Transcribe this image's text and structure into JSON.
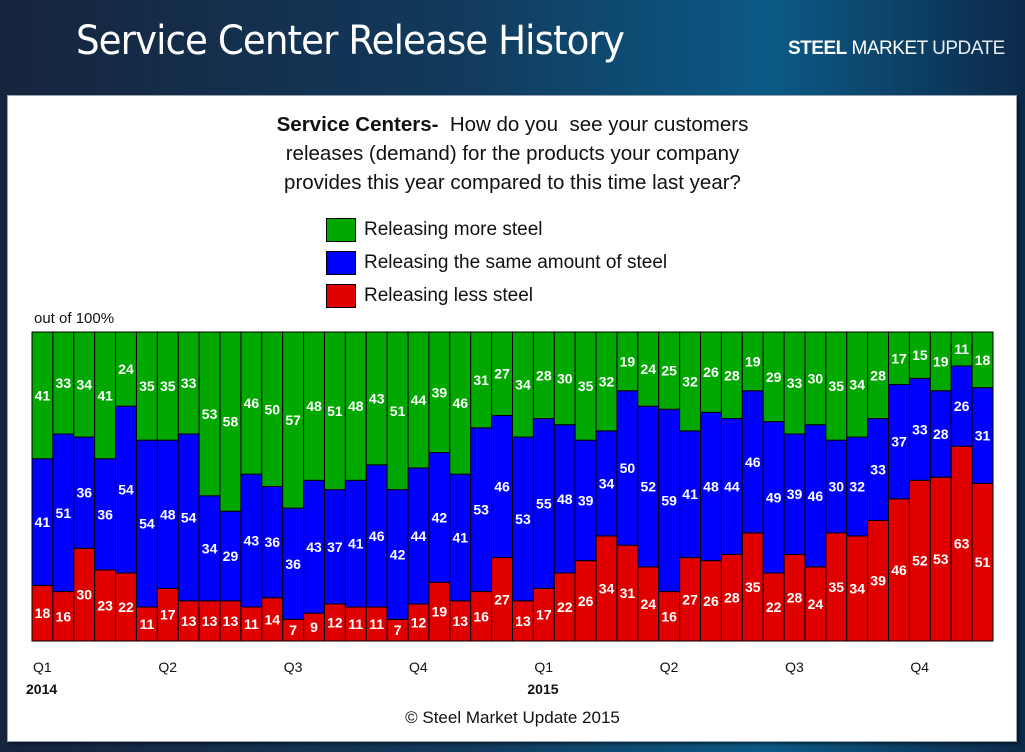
{
  "header": {
    "title": "Service Center Release History",
    "logo": {
      "bold": "STEEL",
      "mid": "MARKET",
      "light": "UPDATE"
    }
  },
  "question": {
    "lead": "Service Centers-",
    "text_line1": "  How do you  see your customers",
    "text_line2": "releases (demand) for the products your company",
    "text_line3": "provides this year compared to this time last year?"
  },
  "footer": {
    "copyright": "© Steel Market Update 2015"
  },
  "chart_data": {
    "type": "bar",
    "stacked": true,
    "title": "Service Centers- How do you see your customers releases (demand) for the products your company provides this year compared to this time last year?",
    "ylabel": "out of 100%",
    "ylim": [
      0,
      100
    ],
    "grid": false,
    "legend_position": "top-center",
    "colors": {
      "more": "#00a800",
      "same": "#0000ff",
      "less": "#e00000"
    },
    "x_ticks": [
      {
        "label": "Q1",
        "bar_index": 0
      },
      {
        "label": "Q2",
        "bar_index": 6
      },
      {
        "label": "Q3",
        "bar_index": 12
      },
      {
        "label": "Q4",
        "bar_index": 18
      },
      {
        "label": "Q1",
        "bar_index": 24
      },
      {
        "label": "Q2",
        "bar_index": 30
      },
      {
        "label": "Q3",
        "bar_index": 36
      },
      {
        "label": "Q4",
        "bar_index": 42
      }
    ],
    "year_labels": [
      {
        "label": "2014",
        "bar_index": 0
      },
      {
        "label": "2015",
        "bar_index": 24
      }
    ],
    "series": [
      {
        "name": "Releasing less steel",
        "key": "less",
        "values": [
          18,
          16,
          30,
          23,
          22,
          11,
          17,
          13,
          13,
          13,
          11,
          14,
          7,
          9,
          12,
          11,
          11,
          7,
          12,
          19,
          13,
          16,
          27,
          13,
          17,
          22,
          26,
          34,
          31,
          24,
          16,
          27,
          26,
          28,
          35,
          22,
          28,
          24,
          35,
          34,
          39,
          46,
          52,
          53,
          63,
          51
        ]
      },
      {
        "name": "Releasing the same amount of steel",
        "key": "same",
        "values": [
          41,
          51,
          36,
          36,
          54,
          54,
          48,
          54,
          34,
          29,
          43,
          36,
          36,
          43,
          37,
          41,
          46,
          42,
          44,
          42,
          41,
          53,
          46,
          53,
          55,
          48,
          39,
          34,
          50,
          52,
          59,
          41,
          48,
          44,
          46,
          49,
          39,
          46,
          30,
          32,
          33,
          37,
          33,
          28,
          26,
          31
        ]
      },
      {
        "name": "Releasing more steel",
        "key": "more",
        "values": [
          41,
          33,
          34,
          41,
          24,
          35,
          35,
          33,
          53,
          58,
          46,
          50,
          57,
          48,
          51,
          48,
          43,
          51,
          44,
          39,
          46,
          31,
          27,
          34,
          28,
          30,
          35,
          32,
          19,
          24,
          25,
          32,
          26,
          28,
          19,
          29,
          33,
          30,
          35,
          34,
          28,
          17,
          15,
          19,
          11,
          18
        ]
      }
    ],
    "legend_order": [
      "more",
      "same",
      "less"
    ]
  }
}
